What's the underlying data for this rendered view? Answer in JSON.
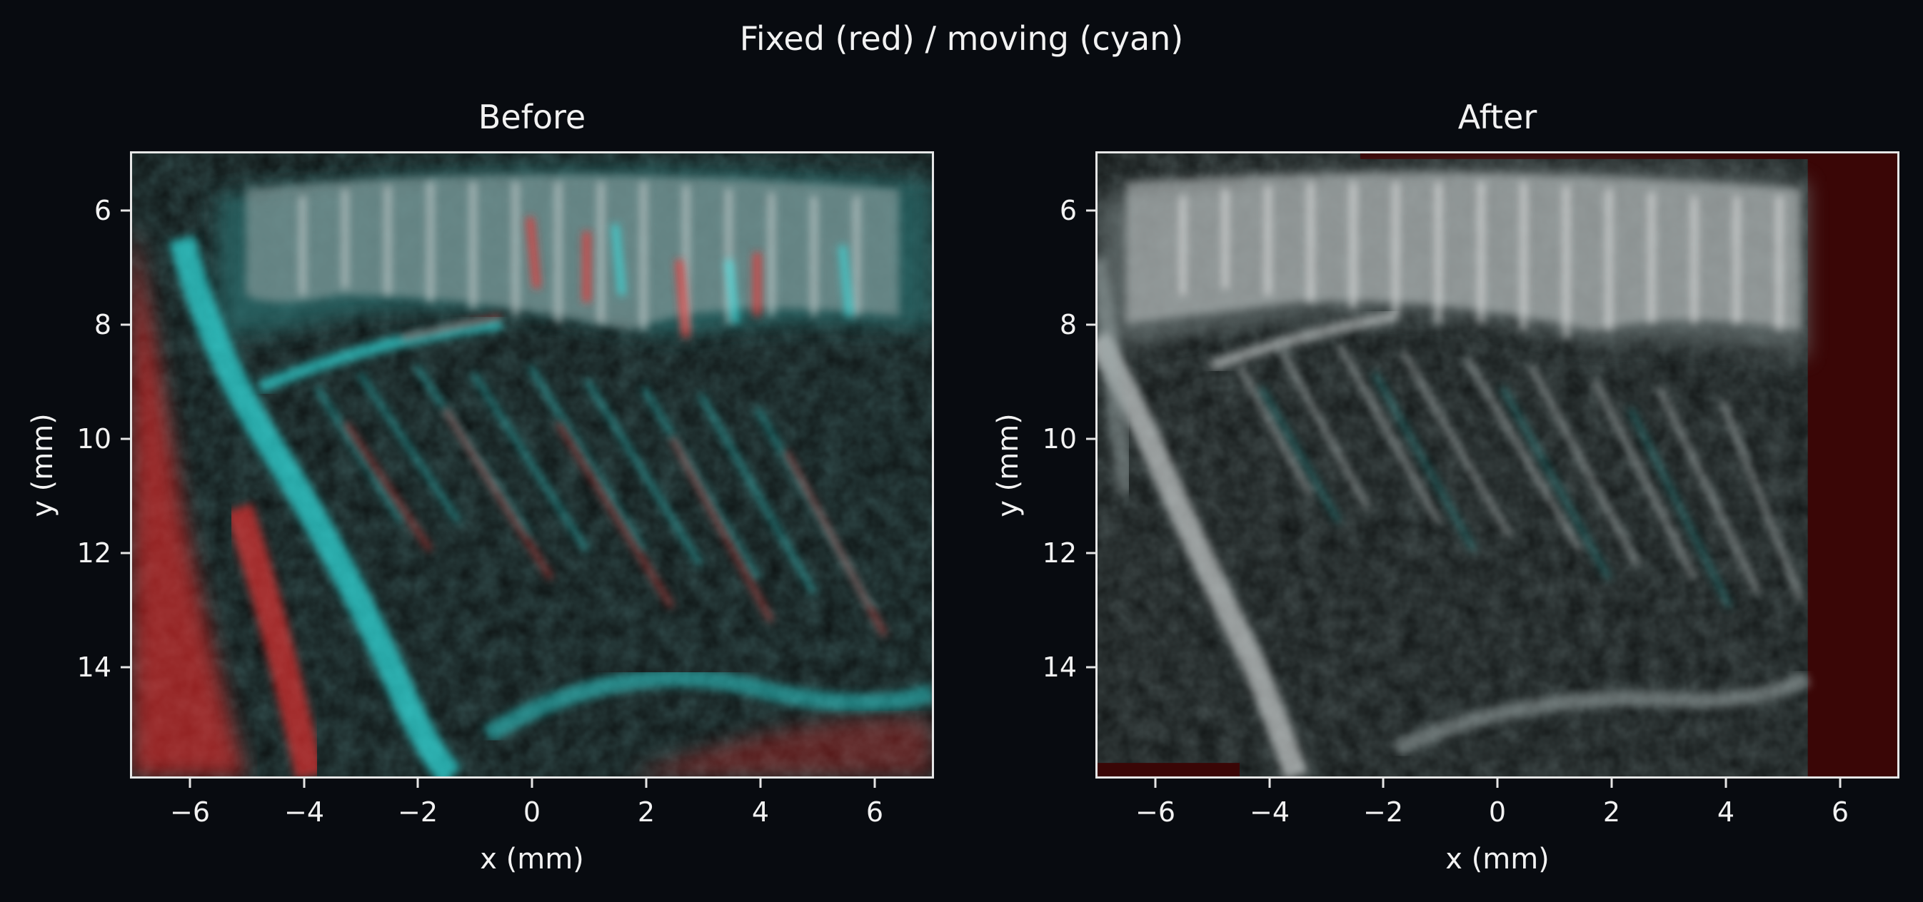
{
  "figure": {
    "suptitle": "Fixed (red) / moving (cyan)"
  },
  "panels": [
    {
      "title": "Before",
      "xlabel": "x (mm)",
      "ylabel": "y (mm)",
      "x_ticks": [
        "−6",
        "−4",
        "−2",
        "0",
        "2",
        "4",
        "6"
      ],
      "y_ticks": [
        "6",
        "8",
        "10",
        "12",
        "14"
      ]
    },
    {
      "title": "After",
      "xlabel": "x (mm)",
      "ylabel": "y (mm)",
      "x_ticks": [
        "−6",
        "−4",
        "−2",
        "0",
        "2",
        "4",
        "6"
      ],
      "y_ticks": [
        "6",
        "8",
        "10",
        "12",
        "14"
      ]
    }
  ],
  "colors": {
    "background": "#080b10",
    "fixed_channel": "#ff3030",
    "moving_channel": "#30f0f0",
    "overlap": "#d8d8d8",
    "axis": "#e6e6e6",
    "text": "#f2f2f2"
  }
}
